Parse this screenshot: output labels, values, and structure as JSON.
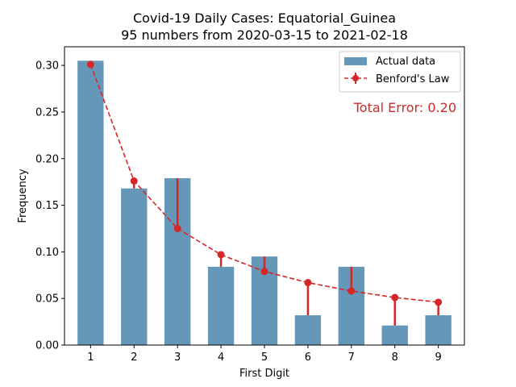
{
  "chart_data": {
    "type": "bar",
    "title": "Covid-19 Daily Cases: Equatorial_Guinea",
    "subtitle": "95 numbers from 2020-03-15 to 2021-02-18",
    "xlabel": "First Digit",
    "ylabel": "Frequency",
    "categories": [
      "1",
      "2",
      "3",
      "4",
      "5",
      "6",
      "7",
      "8",
      "9"
    ],
    "ylim": [
      0,
      0.32
    ],
    "yticks": [
      "0.00",
      "0.05",
      "0.10",
      "0.15",
      "0.20",
      "0.25",
      "0.30"
    ],
    "series": [
      {
        "name": "Actual data",
        "type": "bar",
        "color": "#3274a1",
        "values": [
          0.305,
          0.168,
          0.179,
          0.084,
          0.095,
          0.032,
          0.084,
          0.021,
          0.032
        ]
      },
      {
        "name": "Benford's Law",
        "type": "line",
        "style": "dashed",
        "marker": "circle",
        "color": "#d62728",
        "values": [
          0.301,
          0.176,
          0.125,
          0.097,
          0.079,
          0.067,
          0.058,
          0.051,
          0.046
        ]
      }
    ],
    "annotation": "Total Error: 0.20",
    "legend_position": "top-right",
    "grid": false
  }
}
